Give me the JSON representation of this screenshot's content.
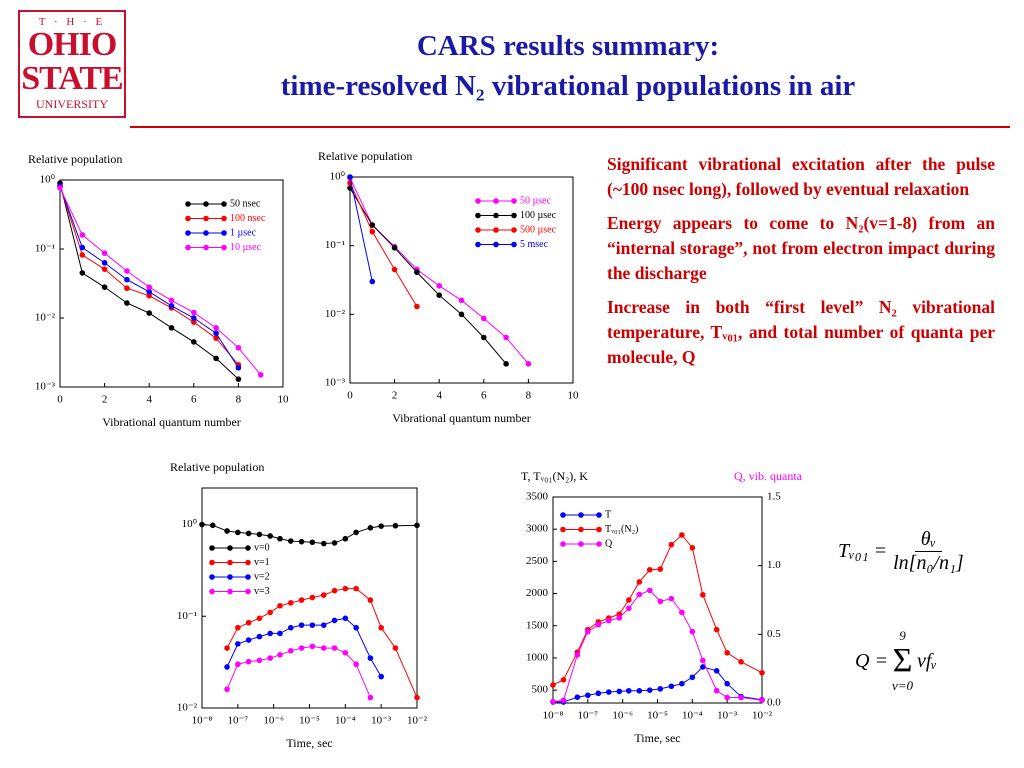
{
  "slide": {
    "logo": {
      "top": "T · H · E",
      "line1": "OHIO",
      "line2": "STATE",
      "line3": "UNIVERSITY"
    },
    "title": [
      "CARS results summary:",
      "time-resolved N₂ vibrational populations in air"
    ],
    "bullets": [
      "Significant vibrational excitation after the pulse (~100 nsec long), followed by eventual relaxation",
      "Energy appears to come to N₂(v=1-8) from an “internal storage”, not from electron impact during the discharge",
      "Increase in both “first level” N₂ vibrational temperature, Tᵥ₀₁, and total number of quanta per molecule, Q"
    ],
    "formula1": {
      "lhs": "Tᵥ₀₁ =",
      "numerator": "θᵥ",
      "denominator": "ln[n₀/n₁]"
    },
    "formula2": {
      "lhs": "Q =",
      "sum_top": "9",
      "sigma": "Σ",
      "sum_bottom": "v=0",
      "body": "vfᵥ"
    }
  },
  "chart_data": [
    {
      "type": "line",
      "ylabel": "Relative population",
      "xlabel": "Vibrational quantum number",
      "x": [
        0,
        1,
        2,
        3,
        4,
        5,
        6,
        7,
        8,
        9
      ],
      "xlim": [
        0,
        10
      ],
      "xticks": [
        0,
        2,
        4,
        6,
        8,
        10
      ],
      "yscale": "log",
      "ylim": [
        0.001,
        1
      ],
      "yticks": [
        {
          "value": 0.001,
          "label": "10⁻³"
        },
        {
          "value": 0.01,
          "label": "10⁻²"
        },
        {
          "value": 0.1,
          "label": "10⁻¹"
        },
        {
          "value": 1,
          "label": "10⁰"
        }
      ],
      "legend": "upper right",
      "colored_legend_text": true,
      "series": [
        {
          "name": "50 nsec",
          "color": "#000000",
          "values": [
            0.9,
            0.045,
            0.028,
            0.0165,
            0.0118,
            0.0072,
            0.0045,
            0.0026,
            0.0013,
            null
          ]
        },
        {
          "name": "100 nsec",
          "color": "#ff0000",
          "values": [
            0.82,
            0.082,
            0.051,
            0.027,
            0.021,
            0.014,
            0.0087,
            0.0051,
            0.0021,
            null
          ]
        },
        {
          "name": "1 µsec",
          "color": "#0000ff",
          "values": [
            0.82,
            0.105,
            0.063,
            0.036,
            0.024,
            0.015,
            0.01,
            0.006,
            0.0019,
            null
          ]
        },
        {
          "name": "10 µsec",
          "color": "#ff00ff",
          "values": [
            0.77,
            0.16,
            0.087,
            0.048,
            0.028,
            0.018,
            0.012,
            0.0072,
            0.0037,
            0.0015
          ]
        }
      ]
    },
    {
      "type": "line",
      "ylabel": "Relative population",
      "xlabel": "Vibrational quantum number",
      "x": [
        0,
        1,
        2,
        3,
        4,
        5,
        6,
        7,
        8
      ],
      "xlim": [
        0,
        10
      ],
      "xticks": [
        0,
        2,
        4,
        6,
        8,
        10
      ],
      "yscale": "log",
      "ylim": [
        0.001,
        1
      ],
      "yticks": [
        {
          "value": 0.001,
          "label": "10⁻³"
        },
        {
          "value": 0.01,
          "label": "10⁻²"
        },
        {
          "value": 0.1,
          "label": "10⁻¹"
        },
        {
          "value": 1,
          "label": "10⁰"
        }
      ],
      "legend": "upper right",
      "colored_legend_text": true,
      "series": [
        {
          "name": "50 µsec",
          "color": "#ff00ff",
          "values": [
            0.97,
            0.2,
            0.097,
            0.045,
            0.026,
            0.016,
            0.0087,
            0.0046,
            0.0019
          ]
        },
        {
          "name": "100 µsec",
          "color": "#000000",
          "values": [
            0.69,
            0.2,
            0.093,
            0.041,
            0.019,
            0.01,
            0.0046,
            0.0019,
            null
          ]
        },
        {
          "name": "500 µsec",
          "color": "#ff0000",
          "values": [
            0.82,
            0.16,
            0.045,
            0.013,
            null,
            null,
            null,
            null,
            null
          ]
        },
        {
          "name": "5 msec",
          "color": "#0000ff",
          "values": [
            1.0,
            0.03,
            null,
            null,
            null,
            null,
            null,
            null,
            null
          ]
        }
      ]
    },
    {
      "type": "line",
      "ylabel": "Relative population",
      "xlabel": "Time, sec",
      "x": [
        1e-08,
        2e-08,
        5e-08,
        1e-07,
        2e-07,
        4e-07,
        8e-07,
        1.5e-06,
        3e-06,
        6e-06,
        1.2e-05,
        2.5e-05,
        5e-05,
        0.0001,
        0.0002,
        0.0005,
        0.001,
        0.0025,
        0.01
      ],
      "xscale": "log",
      "xlim": [
        1e-08,
        0.01
      ],
      "xticks": [
        {
          "value": 1e-08,
          "label": "10⁻⁸"
        },
        {
          "value": 1e-07,
          "label": "10⁻⁷"
        },
        {
          "value": 1e-06,
          "label": "10⁻⁶"
        },
        {
          "value": 1e-05,
          "label": "10⁻⁵"
        },
        {
          "value": 0.0001,
          "label": "10⁻⁴"
        },
        {
          "value": 0.001,
          "label": "10⁻³"
        },
        {
          "value": 0.01,
          "label": "10⁻²"
        }
      ],
      "yscale": "log",
      "ylim": [
        0.01,
        2.5
      ],
      "yticks": [
        {
          "value": 0.01,
          "label": "10⁻²"
        },
        {
          "value": 0.1,
          "label": "10⁻¹"
        },
        {
          "value": 1,
          "label": "10⁰"
        }
      ],
      "legend": "center left",
      "colored_legend_text": false,
      "series": [
        {
          "name": "v=0",
          "color": "#000000",
          "values": [
            1.0,
            0.98,
            0.85,
            0.82,
            0.8,
            0.78,
            0.75,
            0.7,
            0.66,
            0.65,
            0.64,
            0.62,
            0.63,
            0.7,
            0.82,
            0.92,
            0.96,
            0.97,
            0.98
          ]
        },
        {
          "name": "v=1",
          "color": "#ff0000",
          "values": [
            null,
            null,
            0.045,
            0.075,
            0.085,
            0.095,
            0.11,
            0.13,
            0.14,
            0.15,
            0.16,
            0.17,
            0.19,
            0.2,
            0.2,
            0.15,
            0.075,
            0.045,
            0.013
          ]
        },
        {
          "name": "v=2",
          "color": "#0000ff",
          "values": [
            null,
            null,
            0.028,
            0.05,
            0.055,
            0.06,
            0.065,
            0.065,
            0.075,
            0.08,
            0.08,
            0.08,
            0.09,
            0.095,
            0.075,
            0.035,
            0.022,
            null,
            null
          ]
        },
        {
          "name": "v=3",
          "color": "#ff00ff",
          "values": [
            null,
            null,
            0.016,
            0.03,
            0.032,
            0.033,
            0.035,
            0.038,
            0.042,
            0.045,
            0.047,
            0.045,
            0.045,
            0.04,
            0.03,
            0.013,
            null,
            null,
            null
          ]
        }
      ]
    },
    {
      "type": "line",
      "ylabel": "T, Tᵥ₀₁(N₂), K",
      "y2label": "Q, vib. quanta",
      "y2label_color": "#ff00ff",
      "xlabel": "Time, sec",
      "x": [
        1e-08,
        2e-08,
        5e-08,
        1e-07,
        2e-07,
        4e-07,
        8e-07,
        1.5e-06,
        3e-06,
        6e-06,
        1.2e-05,
        2.5e-05,
        5e-05,
        0.0001,
        0.0002,
        0.0005,
        0.001,
        0.0025,
        0.01
      ],
      "xscale": "log",
      "xlim": [
        1e-08,
        0.01
      ],
      "xticks": [
        {
          "value": 1e-08,
          "label": "10⁻⁸"
        },
        {
          "value": 1e-07,
          "label": "10⁻⁷"
        },
        {
          "value": 1e-06,
          "label": "10⁻⁶"
        },
        {
          "value": 1e-05,
          "label": "10⁻⁵"
        },
        {
          "value": 0.0001,
          "label": "10⁻⁴"
        },
        {
          "value": 0.001,
          "label": "10⁻³"
        },
        {
          "value": 0.01,
          "label": "10⁻²"
        }
      ],
      "ylim": [
        300,
        3500
      ],
      "yticks": [
        500,
        1000,
        1500,
        2000,
        2500,
        3000,
        3500
      ],
      "y2lim": [
        0,
        1.5
      ],
      "y2ticks": [
        {
          "value": 0,
          "label": "0.0"
        },
        {
          "value": 0.5,
          "label": "0.5"
        },
        {
          "value": 1,
          "label": "1.0"
        },
        {
          "value": 1.5,
          "label": "1.5"
        }
      ],
      "legend": "upper left",
      "colored_legend_text": false,
      "series": [
        {
          "name": "T",
          "color": "#0000ff",
          "values": [
            315,
            315,
            390,
            420,
            450,
            470,
            480,
            490,
            490,
            500,
            520,
            560,
            600,
            700,
            860,
            800,
            600,
            400,
            350
          ]
        },
        {
          "name": "Tᵥ₀₁(N₂)",
          "color": "#ff0000",
          "values": [
            580,
            660,
            1090,
            1440,
            1560,
            1620,
            1680,
            1900,
            2180,
            2370,
            2380,
            2760,
            2910,
            2710,
            1980,
            1440,
            1080,
            940,
            770
          ]
        },
        {
          "name": "Q",
          "color": "#ff00ff",
          "axis": "y2",
          "values": [
            0.01,
            0.02,
            0.35,
            0.52,
            0.57,
            0.6,
            0.62,
            0.69,
            0.79,
            0.82,
            0.74,
            0.76,
            0.66,
            0.52,
            0.31,
            0.09,
            0.04,
            0.04,
            0.02
          ]
        }
      ]
    }
  ]
}
